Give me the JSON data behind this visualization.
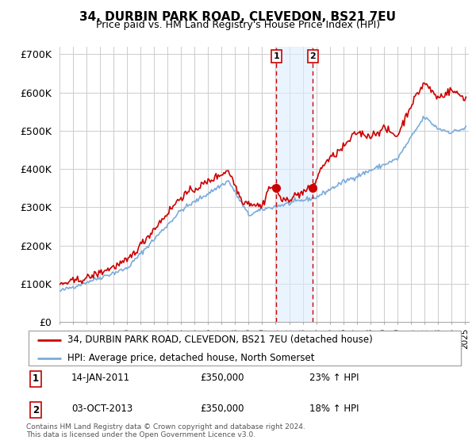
{
  "title": "34, DURBIN PARK ROAD, CLEVEDON, BS21 7EU",
  "subtitle": "Price paid vs. HM Land Registry's House Price Index (HPI)",
  "ylabel_ticks": [
    "£0",
    "£100K",
    "£200K",
    "£300K",
    "£400K",
    "£500K",
    "£600K",
    "£700K"
  ],
  "ylim": [
    0,
    720000
  ],
  "yticks": [
    0,
    100000,
    200000,
    300000,
    400000,
    500000,
    600000,
    700000
  ],
  "legend_label_red": "34, DURBIN PARK ROAD, CLEVEDON, BS21 7EU (detached house)",
  "legend_label_blue": "HPI: Average price, detached house, North Somerset",
  "transaction1_date": "14-JAN-2011",
  "transaction1_price": "£350,000",
  "transaction1_hpi": "23% ↑ HPI",
  "transaction2_date": "03-OCT-2013",
  "transaction2_price": "£350,000",
  "transaction2_hpi": "18% ↑ HPI",
  "copyright_text": "Contains HM Land Registry data © Crown copyright and database right 2024.\nThis data is licensed under the Open Government Licence v3.0.",
  "color_red": "#cc0000",
  "color_blue": "#7aacdc",
  "color_shade": "#ddeeff",
  "color_grid": "#cccccc",
  "color_bg": "#ffffff",
  "marker1_x": 2011.04,
  "marker2_x": 2013.75,
  "marker_y": 350000,
  "vline1_x": 2011.04,
  "vline2_x": 2013.75,
  "xlim_left": 1995,
  "xlim_right": 2025.3
}
